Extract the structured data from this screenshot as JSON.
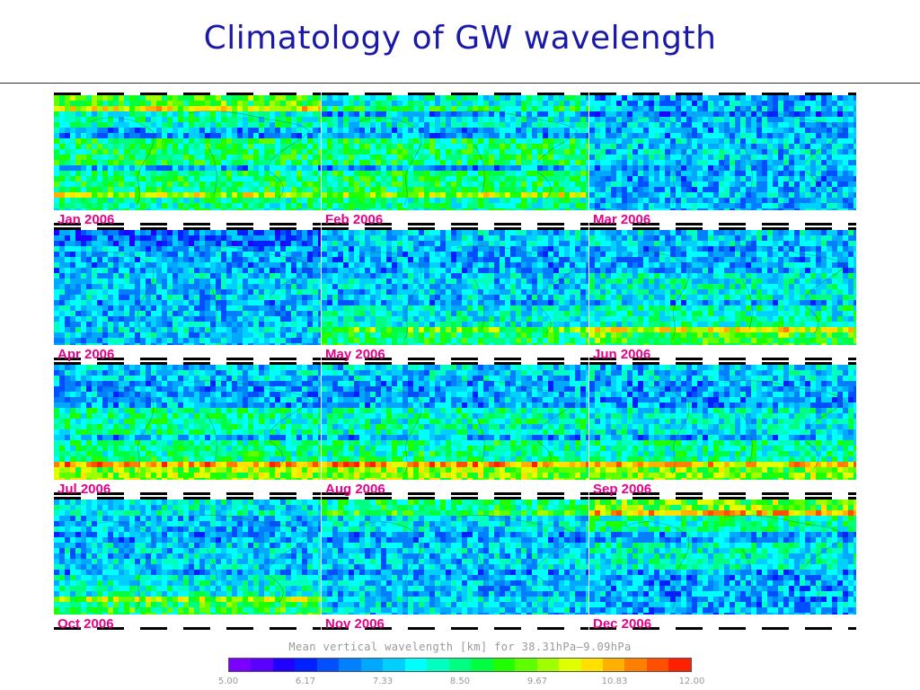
{
  "title": "Climatology of GW wavelength",
  "panels": [
    {
      "label": "Jan 2006"
    },
    {
      "label": "Feb 2006"
    },
    {
      "label": "Mar 2006"
    },
    {
      "label": "Apr 2006"
    },
    {
      "label": "May 2006"
    },
    {
      "label": "Jun 2006"
    },
    {
      "label": "Jul 2006"
    },
    {
      "label": "Aug 2006"
    },
    {
      "label": "Sep 2006"
    },
    {
      "label": "Oct 2006"
    },
    {
      "label": "Nov 2006"
    },
    {
      "label": "Dec 2006"
    }
  ],
  "colorbar": {
    "label": "Mean vertical wavelength [km] for 38.31hPa–9.09hPa",
    "ticks": [
      "5.00",
      "6.17",
      "7.33",
      "8.50",
      "9.67",
      "10.83",
      "12.00"
    ],
    "colors": [
      "#7a00ff",
      "#5a00ff",
      "#2000ff",
      "#0020ff",
      "#0050ff",
      "#0080ff",
      "#00a8ff",
      "#00d0ff",
      "#00ffff",
      "#00ffc0",
      "#00ff80",
      "#00ff40",
      "#20ff00",
      "#60ff00",
      "#a0ff00",
      "#e0ff00",
      "#ffe000",
      "#ffb000",
      "#ff8000",
      "#ff5000",
      "#ff2000"
    ]
  }
}
